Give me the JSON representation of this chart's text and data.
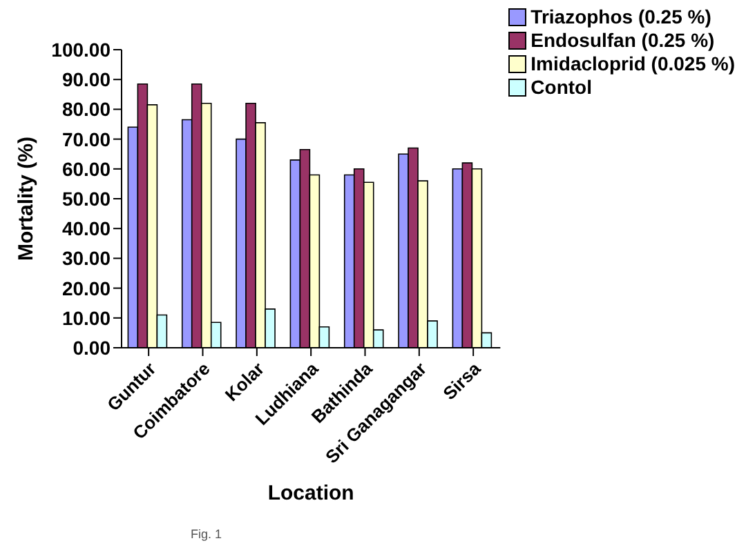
{
  "chart_data": {
    "type": "bar",
    "xlabel": "Location",
    "ylabel": "Mortality (%)",
    "categories": [
      "Guntur",
      "Coimbatore",
      "Kolar",
      "Ludhiana",
      "Bathinda",
      "Sri Ganagangar",
      "Sirsa"
    ],
    "series": [
      {
        "name": "Triazophos (0.25 %)",
        "color": "#9999ff",
        "values": [
          74,
          76.5,
          70,
          63,
          58,
          65,
          60
        ]
      },
      {
        "name": "Endosulfan (0.25 %)",
        "color": "#993366",
        "values": [
          88.5,
          88.5,
          82,
          66.5,
          60,
          67,
          62
        ]
      },
      {
        "name": "Imidacloprid (0.025 %)",
        "color": "#ffffcc",
        "values": [
          81.5,
          82,
          75.5,
          58,
          55.5,
          56,
          60
        ]
      },
      {
        "name": "Contol",
        "color": "#ccffff",
        "values": [
          11,
          8.5,
          13,
          7,
          6,
          9,
          5
        ]
      }
    ],
    "ylim": [
      0,
      100
    ],
    "yticks": [
      {
        "value": 0,
        "label": "0.00"
      },
      {
        "value": 10,
        "label": "10.00"
      },
      {
        "value": 20,
        "label": "20.00"
      },
      {
        "value": 30,
        "label": "30.00"
      },
      {
        "value": 40,
        "label": "40.00"
      },
      {
        "value": 50,
        "label": "50.00"
      },
      {
        "value": 60,
        "label": "60.00"
      },
      {
        "value": 70,
        "label": "70.00"
      },
      {
        "value": 80,
        "label": "80.00"
      },
      {
        "value": 90,
        "label": "90.00"
      },
      {
        "value": 100,
        "label": "100.00"
      }
    ],
    "grid": false,
    "legend": "top right",
    "annotations": [
      "Fig. 1"
    ]
  }
}
